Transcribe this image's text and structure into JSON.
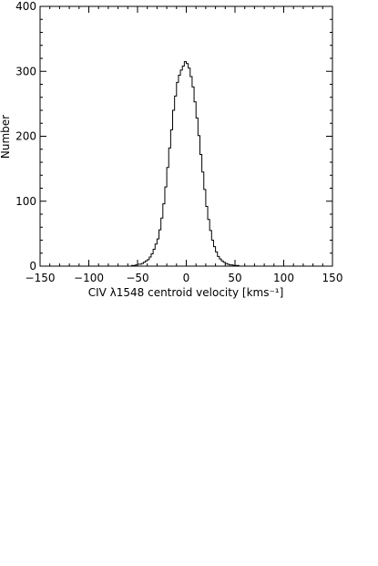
{
  "chart_data": {
    "type": "histogram",
    "title": "",
    "xlabel": "CIV λ1548 centroid velocity [kms⁻¹]",
    "ylabel": "Number",
    "xlim": [
      -150,
      150
    ],
    "ylim": [
      0,
      400
    ],
    "x_ticks": [
      -150,
      -100,
      -50,
      0,
      50,
      100,
      150
    ],
    "y_ticks": [
      0,
      100,
      200,
      300,
      400
    ],
    "grid": false,
    "line_color": "#000000",
    "bin_width": 2,
    "bin_start": -60,
    "counts": [
      0,
      0,
      1,
      1,
      2,
      3,
      3,
      4,
      6,
      8,
      10,
      14,
      19,
      26,
      34,
      42,
      56,
      74,
      96,
      122,
      152,
      182,
      210,
      240,
      262,
      283,
      294,
      302,
      308,
      315,
      312,
      305,
      292,
      276,
      253,
      228,
      201,
      172,
      145,
      118,
      92,
      72,
      55,
      40,
      30,
      22,
      15,
      11,
      8,
      6,
      4,
      3,
      2,
      2,
      1,
      1,
      1,
      0,
      0,
      0
    ]
  }
}
